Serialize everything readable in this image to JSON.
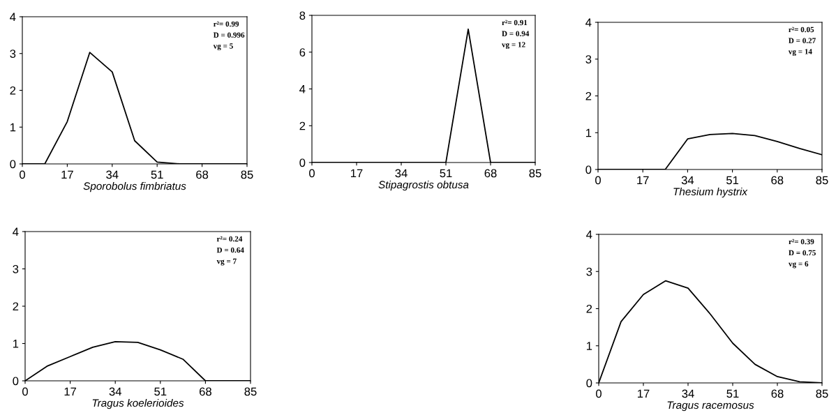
{
  "chart_data": [
    {
      "type": "line",
      "xlabel": "Sporobolus fimbriatus",
      "annotations": [
        "r²= 0.99",
        "D = 0.996",
        "vg = 5"
      ],
      "x": [
        0,
        8.5,
        17,
        25.5,
        34,
        42.5,
        51,
        59.5,
        68,
        76.5,
        85
      ],
      "values": [
        0,
        0,
        1.15,
        3.03,
        2.5,
        0.63,
        0.05,
        0,
        0,
        0,
        0
      ],
      "color": "#000000",
      "xlim": [
        0,
        85
      ],
      "xticks": [
        0,
        17,
        34,
        51,
        68,
        85
      ],
      "ylim": [
        0,
        4
      ],
      "yticks": [
        0,
        1,
        2,
        3,
        4
      ],
      "grid": false,
      "marker": "none",
      "line_style": "solid"
    },
    {
      "type": "line",
      "xlabel": "Stipagrostis obtusa",
      "annotations": [
        "r²= 0.91",
        "D = 0.94",
        "vg = 12"
      ],
      "x": [
        0,
        8.5,
        17,
        25.5,
        34,
        42.5,
        51,
        59.5,
        68,
        76.5,
        85
      ],
      "values": [
        0,
        0,
        0,
        0,
        0,
        0,
        0,
        7.25,
        0,
        0,
        0
      ],
      "color": "#000000",
      "xlim": [
        0,
        85
      ],
      "xticks": [
        0,
        17,
        34,
        51,
        68,
        85
      ],
      "ylim": [
        0,
        8
      ],
      "yticks": [
        0,
        2,
        4,
        6,
        8
      ],
      "grid": false,
      "marker": "none",
      "line_style": "solid"
    },
    {
      "type": "line",
      "xlabel": "Thesium hystrix",
      "annotations": [
        "r²= 0.05",
        "D = 0.27",
        "vg = 14"
      ],
      "x": [
        0,
        8.5,
        17,
        25.5,
        34,
        42.5,
        51,
        59.5,
        68,
        76.5,
        85
      ],
      "values": [
        0,
        0,
        0,
        0,
        0.83,
        0.95,
        0.98,
        0.92,
        0.76,
        0.57,
        0.4
      ],
      "color": "#000000",
      "xlim": [
        0,
        85
      ],
      "xticks": [
        0,
        17,
        34,
        51,
        68,
        85
      ],
      "ylim": [
        0,
        4
      ],
      "yticks": [
        0,
        1,
        2,
        3,
        4
      ],
      "grid": false,
      "marker": "none",
      "line_style": "solid"
    },
    {
      "type": "line",
      "xlabel": "Tragus koelerioides",
      "annotations": [
        "r²= 0.24",
        "D = 0.64",
        "vg = 7"
      ],
      "x": [
        0,
        8.5,
        17,
        25.5,
        34,
        42.5,
        51,
        59.5,
        68,
        76.5,
        85
      ],
      "values": [
        0,
        0.4,
        0.65,
        0.9,
        1.05,
        1.03,
        0.83,
        0.58,
        0,
        0,
        0
      ],
      "color": "#000000",
      "xlim": [
        0,
        85
      ],
      "xticks": [
        0,
        17,
        34,
        51,
        68,
        85
      ],
      "ylim": [
        0,
        4
      ],
      "yticks": [
        0,
        1,
        2,
        3,
        4
      ],
      "grid": false,
      "marker": "none",
      "line_style": "solid"
    },
    {
      "type": "line",
      "xlabel": "Tragus racemosus",
      "annotations": [
        "r²= 0.39",
        "D = 0.75",
        "vg = 6"
      ],
      "x": [
        0,
        8.5,
        17,
        25.5,
        34,
        42.5,
        51,
        59.5,
        68,
        76.5,
        85
      ],
      "values": [
        0,
        1.65,
        2.38,
        2.75,
        2.55,
        1.85,
        1.07,
        0.5,
        0.17,
        0.03,
        0
      ],
      "color": "#000000",
      "xlim": [
        0,
        85
      ],
      "xticks": [
        0,
        17,
        34,
        51,
        68,
        85
      ],
      "ylim": [
        0,
        4
      ],
      "yticks": [
        0,
        1,
        2,
        3,
        4
      ],
      "grid": false,
      "marker": "none",
      "line_style": "solid"
    }
  ]
}
